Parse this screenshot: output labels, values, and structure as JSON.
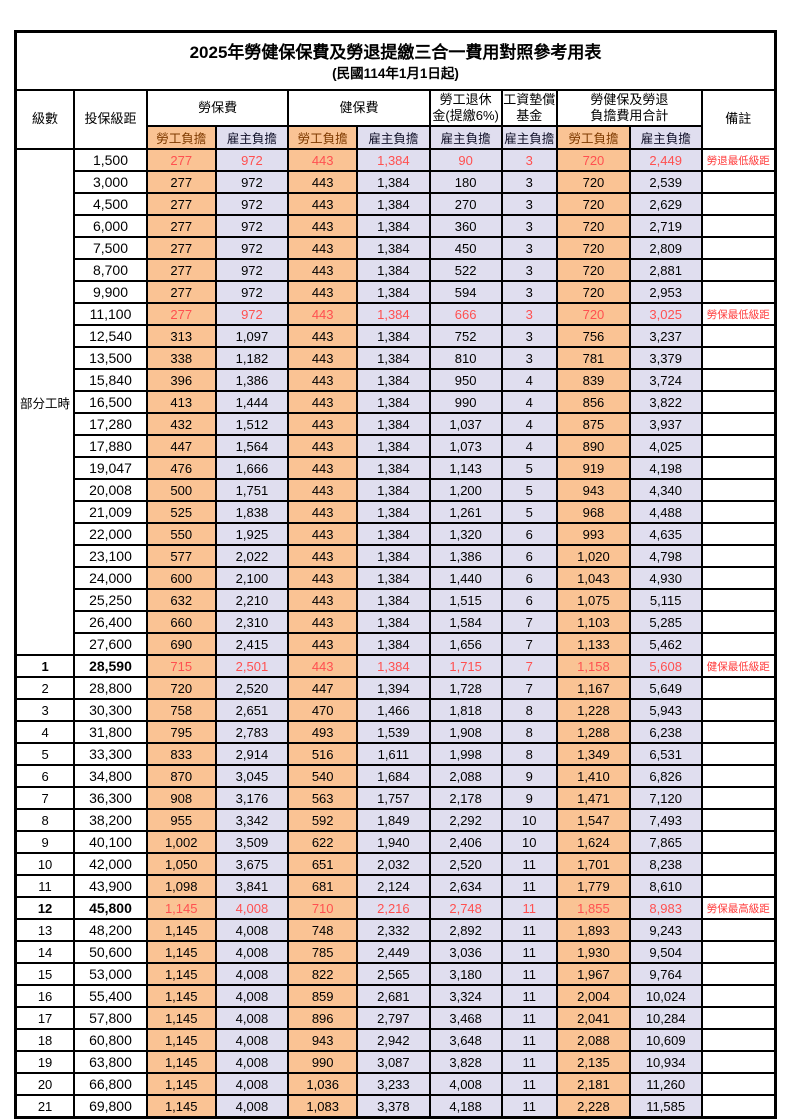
{
  "title": "2025年勞健保保費及勞退提繳三合一費用對照參考用表",
  "subtitle": "(民國114年1月1日起)",
  "colors": {
    "employee_cell_bg": "#fac394",
    "employer_cell_bg": "#e0deef",
    "highlight_text": "#ff5050",
    "remark_text": "#ff3b3b",
    "border": "#000000"
  },
  "header": {
    "level": "級數",
    "salary_bracket": "投保級距",
    "labor_insurance": "勞保費",
    "health_insurance": "健保費",
    "pension_line1": "勞工退休",
    "pension_line2": "金(提繳6%)",
    "wage_fund_line1": "工資墊償",
    "wage_fund_line2": "基金",
    "total_line1": "勞健保及勞退",
    "total_line2": "負擔費用合計",
    "remark": "備註",
    "employee_share": "勞工負擔",
    "employer_share": "雇主負擔"
  },
  "part_time_label": "部分工時",
  "rows": [
    {
      "level": null,
      "salary": "1,500",
      "values": [
        "277",
        "972",
        "443",
        "1,384",
        "90",
        "3",
        "720",
        "2,449"
      ],
      "remark": "勞退最低級距",
      "red": true
    },
    {
      "level": null,
      "salary": "3,000",
      "values": [
        "277",
        "972",
        "443",
        "1,384",
        "180",
        "3",
        "720",
        "2,539"
      ]
    },
    {
      "level": null,
      "salary": "4,500",
      "values": [
        "277",
        "972",
        "443",
        "1,384",
        "270",
        "3",
        "720",
        "2,629"
      ]
    },
    {
      "level": null,
      "salary": "6,000",
      "values": [
        "277",
        "972",
        "443",
        "1,384",
        "360",
        "3",
        "720",
        "2,719"
      ]
    },
    {
      "level": null,
      "salary": "7,500",
      "values": [
        "277",
        "972",
        "443",
        "1,384",
        "450",
        "3",
        "720",
        "2,809"
      ]
    },
    {
      "level": null,
      "salary": "8,700",
      "values": [
        "277",
        "972",
        "443",
        "1,384",
        "522",
        "3",
        "720",
        "2,881"
      ]
    },
    {
      "level": null,
      "salary": "9,900",
      "values": [
        "277",
        "972",
        "443",
        "1,384",
        "594",
        "3",
        "720",
        "2,953"
      ]
    },
    {
      "level": null,
      "salary": "11,100",
      "values": [
        "277",
        "972",
        "443",
        "1,384",
        "666",
        "3",
        "720",
        "3,025"
      ],
      "remark": "勞保最低級距",
      "red": true
    },
    {
      "level": null,
      "salary": "12,540",
      "values": [
        "313",
        "1,097",
        "443",
        "1,384",
        "752",
        "3",
        "756",
        "3,237"
      ]
    },
    {
      "level": null,
      "salary": "13,500",
      "values": [
        "338",
        "1,182",
        "443",
        "1,384",
        "810",
        "3",
        "781",
        "3,379"
      ]
    },
    {
      "level": null,
      "salary": "15,840",
      "values": [
        "396",
        "1,386",
        "443",
        "1,384",
        "950",
        "4",
        "839",
        "3,724"
      ]
    },
    {
      "level": null,
      "salary": "16,500",
      "values": [
        "413",
        "1,444",
        "443",
        "1,384",
        "990",
        "4",
        "856",
        "3,822"
      ]
    },
    {
      "level": null,
      "salary": "17,280",
      "values": [
        "432",
        "1,512",
        "443",
        "1,384",
        "1,037",
        "4",
        "875",
        "3,937"
      ]
    },
    {
      "level": null,
      "salary": "17,880",
      "values": [
        "447",
        "1,564",
        "443",
        "1,384",
        "1,073",
        "4",
        "890",
        "4,025"
      ]
    },
    {
      "level": null,
      "salary": "19,047",
      "values": [
        "476",
        "1,666",
        "443",
        "1,384",
        "1,143",
        "5",
        "919",
        "4,198"
      ]
    },
    {
      "level": null,
      "salary": "20,008",
      "values": [
        "500",
        "1,751",
        "443",
        "1,384",
        "1,200",
        "5",
        "943",
        "4,340"
      ]
    },
    {
      "level": null,
      "salary": "21,009",
      "values": [
        "525",
        "1,838",
        "443",
        "1,384",
        "1,261",
        "5",
        "968",
        "4,488"
      ]
    },
    {
      "level": null,
      "salary": "22,000",
      "values": [
        "550",
        "1,925",
        "443",
        "1,384",
        "1,320",
        "6",
        "993",
        "4,635"
      ]
    },
    {
      "level": null,
      "salary": "23,100",
      "values": [
        "577",
        "2,022",
        "443",
        "1,384",
        "1,386",
        "6",
        "1,020",
        "4,798"
      ]
    },
    {
      "level": null,
      "salary": "24,000",
      "values": [
        "600",
        "2,100",
        "443",
        "1,384",
        "1,440",
        "6",
        "1,043",
        "4,930"
      ]
    },
    {
      "level": null,
      "salary": "25,250",
      "values": [
        "632",
        "2,210",
        "443",
        "1,384",
        "1,515",
        "6",
        "1,075",
        "5,115"
      ]
    },
    {
      "level": null,
      "salary": "26,400",
      "values": [
        "660",
        "2,310",
        "443",
        "1,384",
        "1,584",
        "7",
        "1,103",
        "5,285"
      ]
    },
    {
      "level": null,
      "salary": "27,600",
      "values": [
        "690",
        "2,415",
        "443",
        "1,384",
        "1,656",
        "7",
        "1,133",
        "5,462"
      ]
    },
    {
      "level": "1",
      "salary": "28,590",
      "values": [
        "715",
        "2,501",
        "443",
        "1,384",
        "1,715",
        "7",
        "1,158",
        "5,608"
      ],
      "remark": "健保最低級距",
      "red": true,
      "bold": true
    },
    {
      "level": "2",
      "salary": "28,800",
      "values": [
        "720",
        "2,520",
        "447",
        "1,394",
        "1,728",
        "7",
        "1,167",
        "5,649"
      ]
    },
    {
      "level": "3",
      "salary": "30,300",
      "values": [
        "758",
        "2,651",
        "470",
        "1,466",
        "1,818",
        "8",
        "1,228",
        "5,943"
      ]
    },
    {
      "level": "4",
      "salary": "31,800",
      "values": [
        "795",
        "2,783",
        "493",
        "1,539",
        "1,908",
        "8",
        "1,288",
        "6,238"
      ]
    },
    {
      "level": "5",
      "salary": "33,300",
      "values": [
        "833",
        "2,914",
        "516",
        "1,611",
        "1,998",
        "8",
        "1,349",
        "6,531"
      ]
    },
    {
      "level": "6",
      "salary": "34,800",
      "values": [
        "870",
        "3,045",
        "540",
        "1,684",
        "2,088",
        "9",
        "1,410",
        "6,826"
      ]
    },
    {
      "level": "7",
      "salary": "36,300",
      "values": [
        "908",
        "3,176",
        "563",
        "1,757",
        "2,178",
        "9",
        "1,471",
        "7,120"
      ]
    },
    {
      "level": "8",
      "salary": "38,200",
      "values": [
        "955",
        "3,342",
        "592",
        "1,849",
        "2,292",
        "10",
        "1,547",
        "7,493"
      ]
    },
    {
      "level": "9",
      "salary": "40,100",
      "values": [
        "1,002",
        "3,509",
        "622",
        "1,940",
        "2,406",
        "10",
        "1,624",
        "7,865"
      ]
    },
    {
      "level": "10",
      "salary": "42,000",
      "values": [
        "1,050",
        "3,675",
        "651",
        "2,032",
        "2,520",
        "11",
        "1,701",
        "8,238"
      ]
    },
    {
      "level": "11",
      "salary": "43,900",
      "values": [
        "1,098",
        "3,841",
        "681",
        "2,124",
        "2,634",
        "11",
        "1,779",
        "8,610"
      ]
    },
    {
      "level": "12",
      "salary": "45,800",
      "values": [
        "1,145",
        "4,008",
        "710",
        "2,216",
        "2,748",
        "11",
        "1,855",
        "8,983"
      ],
      "remark": "勞保最高級距",
      "red": true,
      "bold": true
    },
    {
      "level": "13",
      "salary": "48,200",
      "values": [
        "1,145",
        "4,008",
        "748",
        "2,332",
        "2,892",
        "11",
        "1,893",
        "9,243"
      ]
    },
    {
      "level": "14",
      "salary": "50,600",
      "values": [
        "1,145",
        "4,008",
        "785",
        "2,449",
        "3,036",
        "11",
        "1,930",
        "9,504"
      ]
    },
    {
      "level": "15",
      "salary": "53,000",
      "values": [
        "1,145",
        "4,008",
        "822",
        "2,565",
        "3,180",
        "11",
        "1,967",
        "9,764"
      ]
    },
    {
      "level": "16",
      "salary": "55,400",
      "values": [
        "1,145",
        "4,008",
        "859",
        "2,681",
        "3,324",
        "11",
        "2,004",
        "10,024"
      ]
    },
    {
      "level": "17",
      "salary": "57,800",
      "values": [
        "1,145",
        "4,008",
        "896",
        "2,797",
        "3,468",
        "11",
        "2,041",
        "10,284"
      ]
    },
    {
      "level": "18",
      "salary": "60,800",
      "values": [
        "1,145",
        "4,008",
        "943",
        "2,942",
        "3,648",
        "11",
        "2,088",
        "10,609"
      ]
    },
    {
      "level": "19",
      "salary": "63,800",
      "values": [
        "1,145",
        "4,008",
        "990",
        "3,087",
        "3,828",
        "11",
        "2,135",
        "10,934"
      ]
    },
    {
      "level": "20",
      "salary": "66,800",
      "values": [
        "1,145",
        "4,008",
        "1,036",
        "3,233",
        "4,008",
        "11",
        "2,181",
        "11,260"
      ]
    },
    {
      "level": "21",
      "salary": "69,800",
      "values": [
        "1,145",
        "4,008",
        "1,083",
        "3,378",
        "4,188",
        "11",
        "2,228",
        "11,585"
      ]
    }
  ]
}
